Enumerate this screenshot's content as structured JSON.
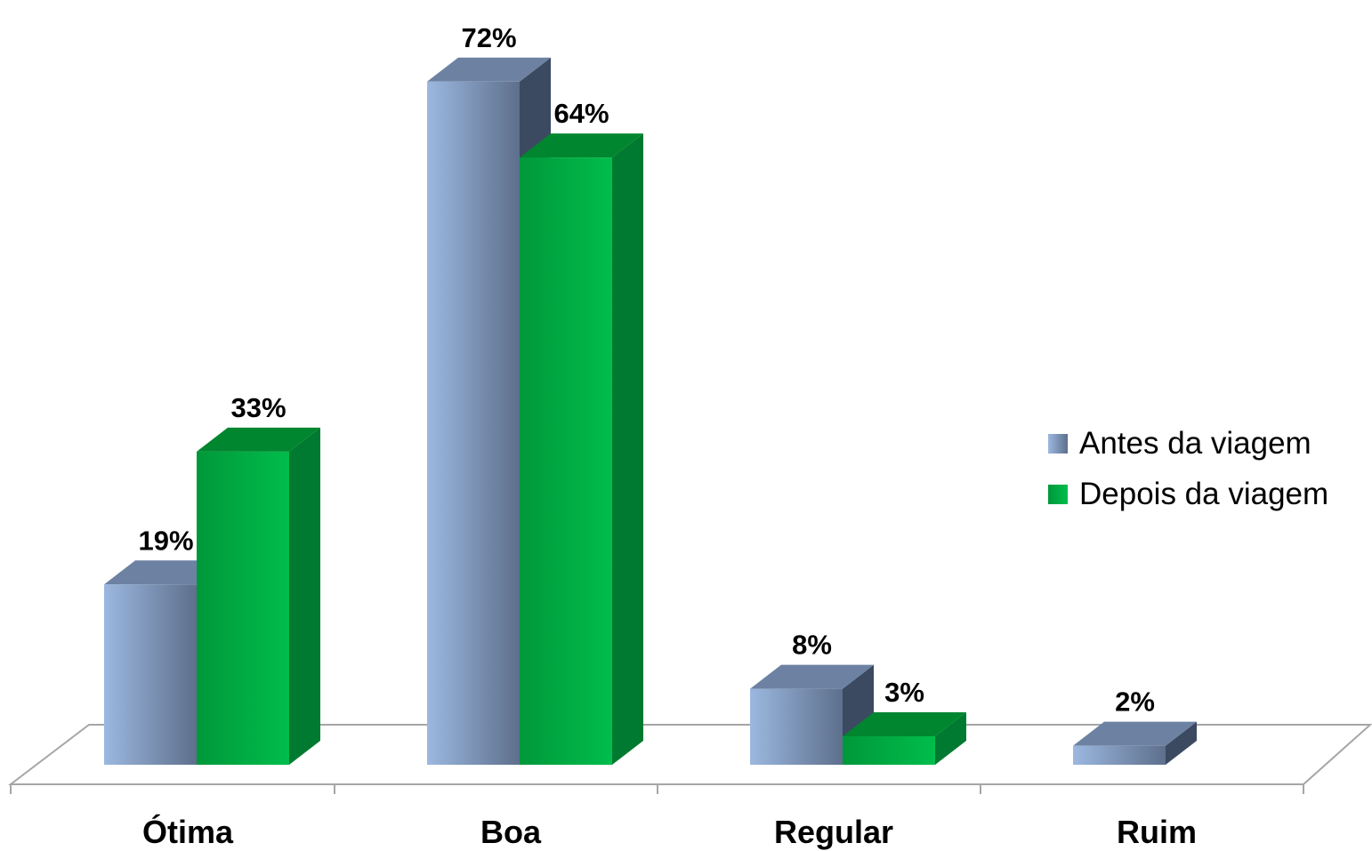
{
  "chart_data": {
    "type": "bar",
    "categories": [
      "Ótima",
      "Boa",
      "Regular",
      "Ruim"
    ],
    "series": [
      {
        "name": "Antes da viagem",
        "values": [
          19,
          72,
          8,
          2
        ],
        "labels": [
          "19%",
          "72%",
          "8%",
          "2%"
        ],
        "color": "#7f96b8"
      },
      {
        "name": "Depois da viagem",
        "values": [
          33,
          64,
          3,
          null
        ],
        "labels": [
          "33%",
          "64%",
          "3%",
          ""
        ],
        "color": "#00a33e"
      }
    ],
    "ylim": [
      0,
      80
    ],
    "grid": false,
    "legend_position": "right",
    "style": "3d-clustered-column"
  },
  "legend": {
    "items": [
      "Antes da viagem",
      "Depois da viagem"
    ]
  }
}
